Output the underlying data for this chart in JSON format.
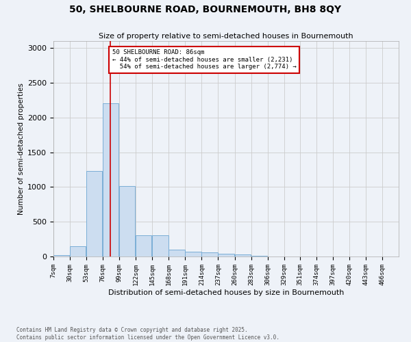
{
  "title": "50, SHELBOURNE ROAD, BOURNEMOUTH, BH8 8QY",
  "subtitle": "Size of property relative to semi-detached houses in Bournemouth",
  "xlabel": "Distribution of semi-detached houses by size in Bournemouth",
  "ylabel": "Number of semi-detached properties",
  "footer_line1": "Contains HM Land Registry data © Crown copyright and database right 2025.",
  "footer_line2": "Contains public sector information licensed under the Open Government Licence v3.0.",
  "bar_fill_color": "#ccddf0",
  "bar_edge_color": "#7aaed6",
  "bar_values": [
    20,
    150,
    1230,
    2200,
    1010,
    310,
    310,
    100,
    65,
    55,
    35,
    25,
    10,
    0,
    0,
    0,
    0,
    0,
    0,
    0,
    0
  ],
  "bin_edges": [
    7,
    30,
    53,
    76,
    99,
    122,
    145,
    168,
    191,
    214,
    237,
    260,
    283,
    306,
    329,
    351,
    374,
    397,
    420,
    443,
    466
  ],
  "x_tick_labels": [
    "7sqm",
    "30sqm",
    "53sqm",
    "76sqm",
    "99sqm",
    "122sqm",
    "145sqm",
    "168sqm",
    "191sqm",
    "214sqm",
    "237sqm",
    "260sqm",
    "283sqm",
    "306sqm",
    "329sqm",
    "351sqm",
    "374sqm",
    "397sqm",
    "420sqm",
    "443sqm",
    "466sqm"
  ],
  "ylim": [
    0,
    3100
  ],
  "yticks": [
    0,
    500,
    1000,
    1500,
    2000,
    2500,
    3000
  ],
  "property_size": 86,
  "property_label": "50 SHELBOURNE ROAD: 86sqm",
  "pct_smaller": 44,
  "n_smaller": 2231,
  "pct_larger": 54,
  "n_larger": 2774,
  "red_line_color": "#cc0000",
  "annotation_box_color": "#cc0000",
  "grid_color": "#cccccc",
  "bg_color": "#eef2f8",
  "plot_bg_color": "#eef2f8"
}
